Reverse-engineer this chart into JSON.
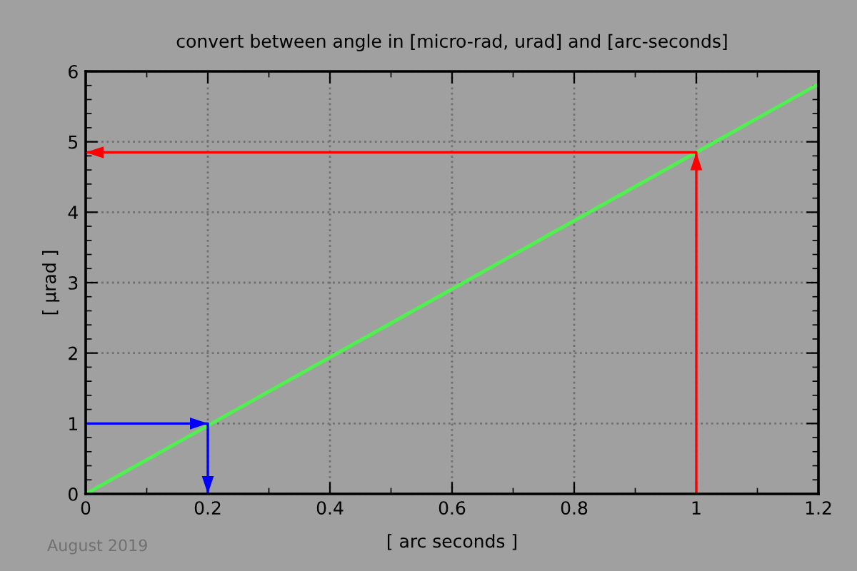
{
  "chart_data": {
    "type": "line",
    "title": "convert between angle in [micro-rad, urad] and [arc-seconds]",
    "xlabel": "[ arc seconds ]",
    "ylabel": "[ µrad ]",
    "series": [
      {
        "color": "#50f050",
        "x": [
          0,
          1.2
        ],
        "values": [
          0,
          5.82
        ]
      },
      {
        "color": "#0000ff",
        "x": [
          0,
          0.2,
          0.2
        ],
        "values": [
          1,
          1,
          0
        ]
      },
      {
        "color": "#ff0000",
        "x": [
          1,
          1,
          0
        ],
        "values": [
          0,
          4.85,
          4.85
        ]
      }
    ],
    "xlim": [
      0,
      1.2
    ],
    "ylim": [
      0,
      6
    ],
    "xticks": [
      0,
      0.2,
      0.4,
      0.6,
      0.8,
      1,
      1.2
    ],
    "yticks": [
      0,
      1,
      2,
      3,
      4,
      5,
      6
    ],
    "grid": true,
    "legend": false,
    "marker": "none",
    "line_style": "solid",
    "annotations": [
      "August 2019"
    ]
  }
}
